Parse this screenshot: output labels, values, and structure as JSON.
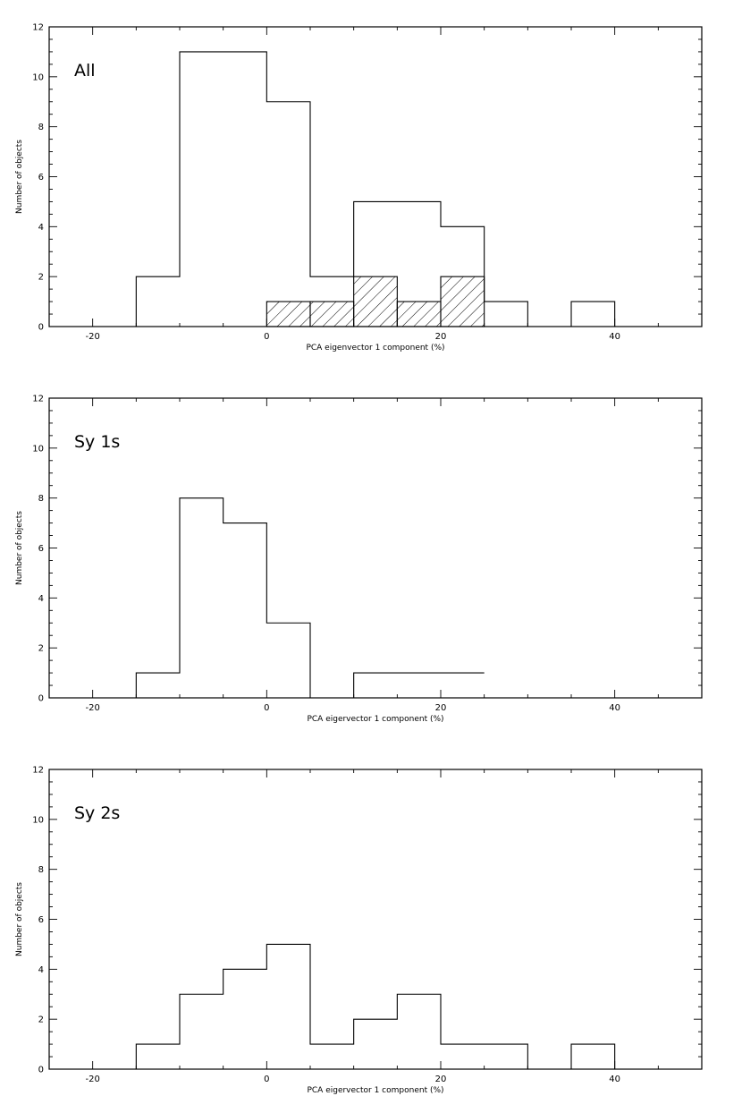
{
  "chart_data": [
    {
      "type": "histogram",
      "label": "All",
      "xlabel": "PCA eigenvector 1 component (%)",
      "ylabel": "Number of objects",
      "xlim": [
        -25,
        50
      ],
      "ylim": [
        0,
        12
      ],
      "xticks": [
        -20,
        0,
        20,
        40
      ],
      "yticks": [
        0,
        2,
        4,
        6,
        8,
        10,
        12
      ],
      "bin_edges": [
        -20,
        -15,
        -10,
        -5,
        0,
        5,
        10,
        15,
        20,
        25,
        30,
        35,
        40,
        45
      ],
      "values": [
        0,
        2,
        11,
        11,
        9,
        2,
        5,
        5,
        4,
        1,
        0,
        1,
        0
      ],
      "hatched_values": [
        0,
        0,
        0,
        0,
        1,
        1,
        2,
        1,
        2,
        0,
        0,
        0,
        0
      ]
    },
    {
      "type": "histogram",
      "label": "Sy 1s",
      "xlabel": "PCA eigervector 1 component (%)",
      "ylabel": "Number of objects",
      "xlim": [
        -25,
        50
      ],
      "ylim": [
        0,
        12
      ],
      "xticks": [
        -20,
        0,
        20,
        40
      ],
      "yticks": [
        0,
        2,
        4,
        6,
        8,
        10,
        12
      ],
      "bin_edges": [
        -20,
        -15,
        -10,
        -5,
        0,
        5,
        10,
        15,
        20,
        25
      ],
      "values": [
        0,
        1,
        8,
        7,
        3,
        0,
        1,
        1,
        1
      ]
    },
    {
      "type": "histogram",
      "label": "Sy 2s",
      "xlabel": "PCA eigervector 1 component (%)",
      "ylabel": "Number of objects",
      "xlim": [
        -25,
        50
      ],
      "ylim": [
        0,
        12
      ],
      "xticks": [
        -20,
        0,
        20,
        40
      ],
      "yticks": [
        0,
        2,
        4,
        6,
        8,
        10,
        12
      ],
      "bin_edges": [
        -20,
        -15,
        -10,
        -5,
        0,
        5,
        10,
        15,
        20,
        25,
        30,
        35,
        40,
        45
      ],
      "values": [
        0,
        1,
        3,
        4,
        5,
        1,
        2,
        3,
        1,
        1,
        0,
        1,
        0
      ]
    }
  ]
}
